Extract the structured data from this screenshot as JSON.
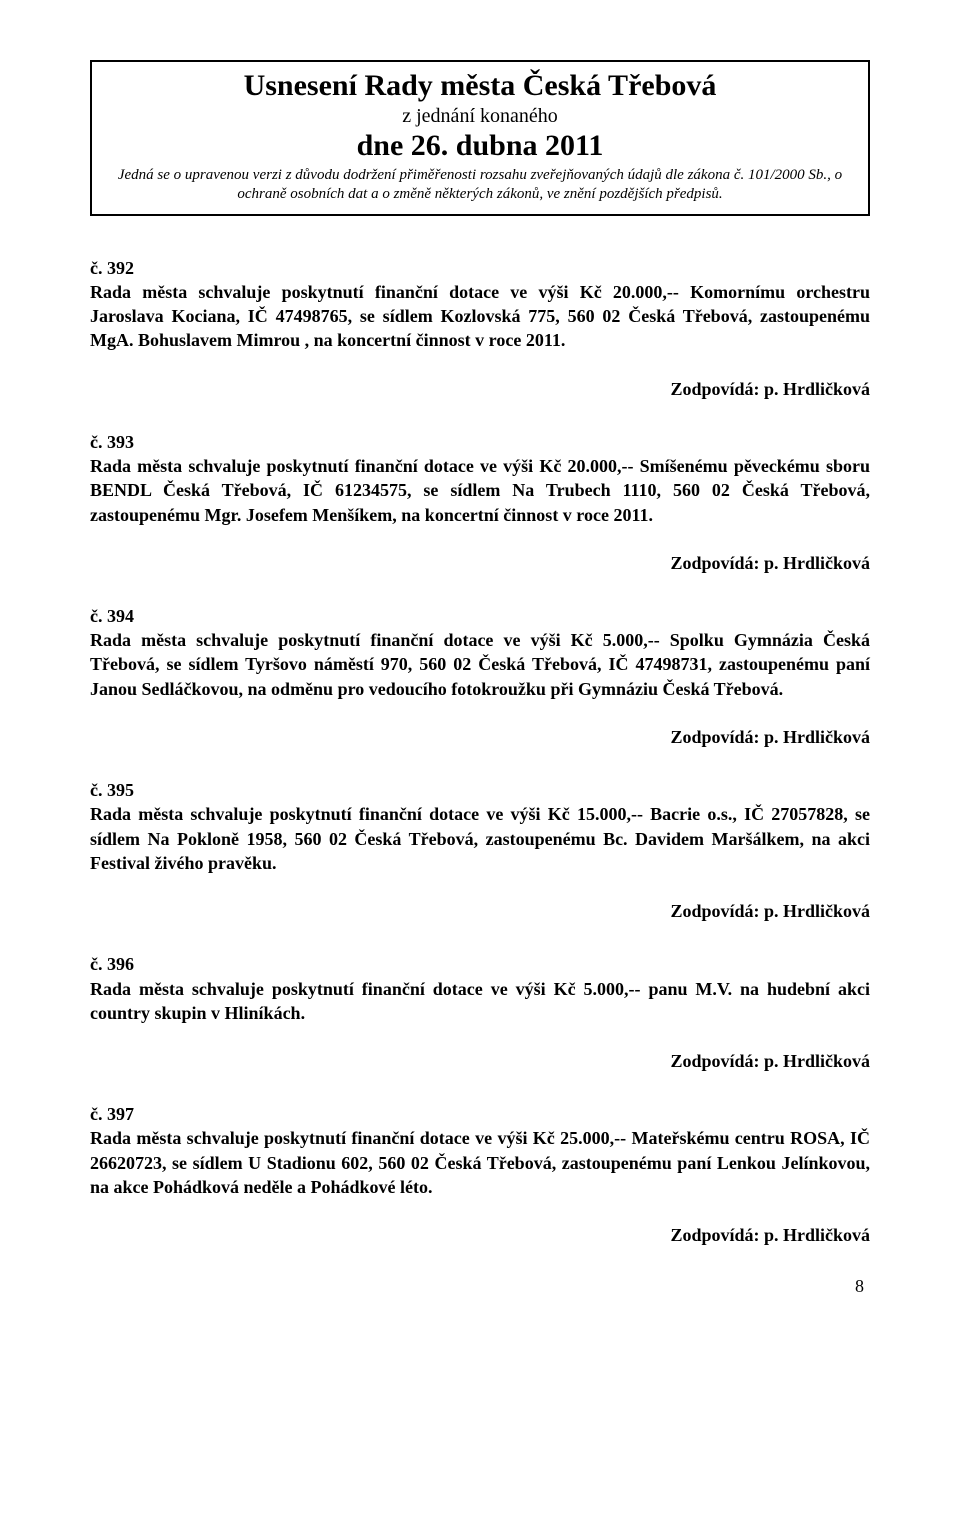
{
  "header": {
    "title": "Usnesení Rady města Česká Třebová",
    "sub1": "z jednání konaného",
    "date": "dne 26. dubna 2011",
    "note": "Jedná se o upravenou verzi z důvodu dodržení přiměřenosti rozsahu zveřejňovaných údajů dle zákona č. 101/2000 Sb., o ochraně osobních dat a o změně některých zákonů, ve znění pozdějších předpisů."
  },
  "resolutions": [
    {
      "num": "č. 392",
      "body": "Rada města schvaluje poskytnutí finanční dotace ve výši Kč 20.000,-- Komornímu orchestru Jaroslava Kociana, IČ 47498765, se sídlem Kozlovská 775, 560 02  Česká Třebová, zastoupenému MgA. Bohuslavem Mimrou , na koncertní činnost v roce 2011.",
      "resp": "Zodpovídá: p. Hrdličková"
    },
    {
      "num": "č. 393",
      "body": "Rada města schvaluje poskytnutí finanční dotace ve výši Kč 20.000,-- Smíšenému pěveckému sboru BENDL Česká Třebová, IČ 61234575, se sídlem Na Trubech 1110, 560 02 Česká Třebová, zastoupenému Mgr.  Josefem  Menšíkem, na koncertní činnost v roce 2011.",
      "resp": "Zodpovídá: p. Hrdličková"
    },
    {
      "num": "č. 394",
      "body": "Rada města schvaluje poskytnutí finanční dotace ve výši Kč 5.000,-- Spolku Gymnázia Česká Třebová, se sídlem Tyršovo náměstí 970, 560 02 Česká Třebová, IČ 47498731, zastoupenému paní Janou Sedláčkovou, na odměnu pro vedoucího fotokroužku při Gymnáziu Česká Třebová.",
      "resp": "Zodpovídá: p. Hrdličková"
    },
    {
      "num": "č. 395",
      "body": "Rada města schvaluje poskytnutí finanční dotace ve výši Kč 15.000,-- Bacrie o.s., IČ 27057828, se sídlem Na Pokloně 1958, 560 02  Česká Třebová, zastoupenému Bc. Davidem Maršálkem, na akci Festival živého pravěku.",
      "resp": "Zodpovídá: p. Hrdličková"
    },
    {
      "num": "č. 396",
      "body": "Rada města schvaluje poskytnutí finanční dotace ve výši Kč 5.000,-- panu M.V. na hudební akci country skupin v Hliníkách.",
      "resp": "Zodpovídá: p. Hrdličková"
    },
    {
      "num": "č. 397",
      "body": "Rada města schvaluje poskytnutí finanční dotace ve výši Kč 25.000,-- Mateřskému centru ROSA, IČ 26620723, se sídlem U Stadionu 602, 560 02 Česká Třebová, zastoupenému paní Lenkou Jelínkovou, na akce Pohádková neděle a Pohádkové léto.",
      "resp": "Zodpovídá: p. Hrdličková"
    }
  ],
  "pageNumber": "8"
}
